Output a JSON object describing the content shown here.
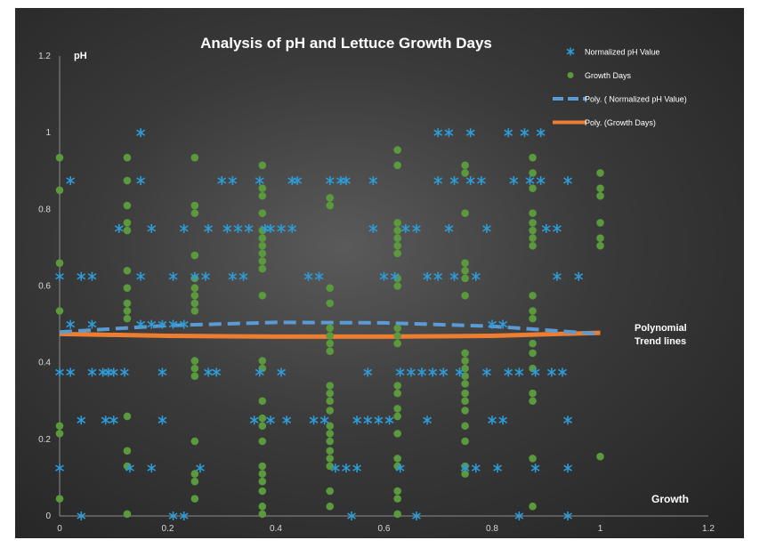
{
  "chart_data": {
    "type": "scatter",
    "title": "Analysis of pH and Lettuce Growth Days",
    "ylabel": "pH",
    "xlabel": "Growth",
    "annotation": "Polynomial Trend lines",
    "xlim": [
      0,
      1.2
    ],
    "ylim": [
      0,
      1.2
    ],
    "x_ticks": [
      "0",
      "0.2",
      "0.4",
      "0.6",
      "0.8",
      "1",
      "1.2"
    ],
    "y_ticks": [
      "0",
      "0.2",
      "0.4",
      "0.6",
      "0.8",
      "1",
      "1.2"
    ],
    "grid": false,
    "legend_position": "top-right",
    "legend": [
      {
        "label": "Normalized pH Value",
        "marker": "star",
        "color": "#2e9bd6"
      },
      {
        "label": "Growth Days",
        "marker": "circle",
        "color": "#5b9a3c"
      },
      {
        "label": "Poly. ( Normalized pH Value)",
        "marker": "dash",
        "color": "#5b9bd5"
      },
      {
        "label": "Poly. (Growth Days)",
        "marker": "line",
        "color": "#ed7d31"
      }
    ],
    "series": [
      {
        "name": "Normalized pH Value",
        "color": "#2e9bd6",
        "points": [
          [
            0.0,
            0.625
          ],
          [
            0.0,
            0.375
          ],
          [
            0.0,
            0.125
          ],
          [
            0.02,
            0.875
          ],
          [
            0.02,
            0.5
          ],
          [
            0.02,
            0.375
          ],
          [
            0.04,
            0.625
          ],
          [
            0.04,
            0.25
          ],
          [
            0.04,
            0.0
          ],
          [
            0.06,
            0.625
          ],
          [
            0.06,
            0.5
          ],
          [
            0.06,
            0.375
          ],
          [
            0.08,
            0.375
          ],
          [
            0.085,
            0.25
          ],
          [
            0.09,
            0.375
          ],
          [
            0.1,
            0.25
          ],
          [
            0.1,
            0.375
          ],
          [
            0.11,
            0.75
          ],
          [
            0.12,
            0.375
          ],
          [
            0.13,
            0.125
          ],
          [
            0.15,
            1.0
          ],
          [
            0.15,
            0.875
          ],
          [
            0.15,
            0.625
          ],
          [
            0.15,
            0.5
          ],
          [
            0.17,
            0.75
          ],
          [
            0.17,
            0.125
          ],
          [
            0.17,
            0.5
          ],
          [
            0.19,
            0.5
          ],
          [
            0.19,
            0.375
          ],
          [
            0.19,
            0.25
          ],
          [
            0.21,
            0.625
          ],
          [
            0.21,
            0.5
          ],
          [
            0.21,
            0.0
          ],
          [
            0.23,
            0.75
          ],
          [
            0.23,
            0.5
          ],
          [
            0.23,
            0.0
          ],
          [
            0.25,
            0.625
          ],
          [
            0.26,
            0.125
          ],
          [
            0.27,
            0.625
          ],
          [
            0.275,
            0.75
          ],
          [
            0.275,
            0.375
          ],
          [
            0.29,
            0.375
          ],
          [
            0.3,
            0.875
          ],
          [
            0.31,
            0.75
          ],
          [
            0.32,
            0.875
          ],
          [
            0.32,
            0.625
          ],
          [
            0.33,
            0.75
          ],
          [
            0.34,
            0.625
          ],
          [
            0.35,
            0.75
          ],
          [
            0.36,
            0.25
          ],
          [
            0.37,
            0.375
          ],
          [
            0.37,
            0.875
          ],
          [
            0.38,
            0.75
          ],
          [
            0.39,
            0.75
          ],
          [
            0.39,
            0.25
          ],
          [
            0.41,
            0.75
          ],
          [
            0.41,
            0.375
          ],
          [
            0.42,
            0.25
          ],
          [
            0.43,
            0.875
          ],
          [
            0.43,
            0.75
          ],
          [
            0.44,
            0.875
          ],
          [
            0.46,
            0.625
          ],
          [
            0.47,
            0.25
          ],
          [
            0.48,
            0.625
          ],
          [
            0.49,
            0.25
          ],
          [
            0.5,
            0.875
          ],
          [
            0.51,
            0.125
          ],
          [
            0.52,
            0.875
          ],
          [
            0.53,
            0.875
          ],
          [
            0.53,
            0.125
          ],
          [
            0.54,
            0.0
          ],
          [
            0.55,
            0.125
          ],
          [
            0.55,
            0.25
          ],
          [
            0.57,
            0.25
          ],
          [
            0.57,
            0.375
          ],
          [
            0.58,
            0.875
          ],
          [
            0.58,
            0.75
          ],
          [
            0.59,
            0.25
          ],
          [
            0.6,
            0.625
          ],
          [
            0.61,
            0.25
          ],
          [
            0.62,
            0.625
          ],
          [
            0.63,
            0.125
          ],
          [
            0.63,
            0.375
          ],
          [
            0.64,
            0.75
          ],
          [
            0.65,
            0.375
          ],
          [
            0.66,
            0.75
          ],
          [
            0.66,
            0.0
          ],
          [
            0.67,
            0.375
          ],
          [
            0.68,
            0.625
          ],
          [
            0.68,
            0.25
          ],
          [
            0.69,
            0.375
          ],
          [
            0.7,
            0.625
          ],
          [
            0.7,
            1.0
          ],
          [
            0.7,
            0.875
          ],
          [
            0.71,
            0.375
          ],
          [
            0.72,
            1.0
          ],
          [
            0.72,
            0.75
          ],
          [
            0.73,
            0.875
          ],
          [
            0.73,
            0.625
          ],
          [
            0.74,
            0.375
          ],
          [
            0.75,
            0.125
          ],
          [
            0.76,
            0.875
          ],
          [
            0.76,
            1.0
          ],
          [
            0.77,
            0.625
          ],
          [
            0.77,
            0.125
          ],
          [
            0.78,
            0.875
          ],
          [
            0.79,
            0.75
          ],
          [
            0.79,
            0.375
          ],
          [
            0.8,
            0.25
          ],
          [
            0.8,
            0.5
          ],
          [
            0.81,
            0.125
          ],
          [
            0.82,
            0.5
          ],
          [
            0.82,
            0.25
          ],
          [
            0.83,
            0.375
          ],
          [
            0.83,
            1.0
          ],
          [
            0.84,
            0.875
          ],
          [
            0.85,
            0.0
          ],
          [
            0.85,
            0.375
          ],
          [
            0.86,
            1.0
          ],
          [
            0.87,
            0.875
          ],
          [
            0.88,
            0.375
          ],
          [
            0.88,
            0.125
          ],
          [
            0.89,
            0.875
          ],
          [
            0.89,
            1.0
          ],
          [
            0.9,
            0.75
          ],
          [
            0.91,
            0.375
          ],
          [
            0.92,
            0.75
          ],
          [
            0.92,
            0.625
          ],
          [
            0.93,
            0.375
          ],
          [
            0.94,
            0.875
          ],
          [
            0.94,
            0.25
          ],
          [
            0.94,
            0.125
          ],
          [
            0.94,
            0.0
          ],
          [
            0.96,
            0.625
          ]
        ]
      },
      {
        "name": "Growth Days",
        "color": "#5b9a3c",
        "points": [
          [
            0.0,
            0.935
          ],
          [
            0.0,
            0.85
          ],
          [
            0.0,
            0.66
          ],
          [
            0.0,
            0.535
          ],
          [
            0.0,
            0.235
          ],
          [
            0.0,
            0.215
          ],
          [
            0.0,
            0.045
          ],
          [
            0.125,
            0.935
          ],
          [
            0.125,
            0.875
          ],
          [
            0.125,
            0.81
          ],
          [
            0.125,
            0.765
          ],
          [
            0.125,
            0.745
          ],
          [
            0.125,
            0.64
          ],
          [
            0.125,
            0.595
          ],
          [
            0.125,
            0.555
          ],
          [
            0.125,
            0.535
          ],
          [
            0.125,
            0.515
          ],
          [
            0.125,
            0.26
          ],
          [
            0.125,
            0.17
          ],
          [
            0.125,
            0.13
          ],
          [
            0.125,
            0.005
          ],
          [
            0.25,
            0.935
          ],
          [
            0.25,
            0.81
          ],
          [
            0.25,
            0.79
          ],
          [
            0.25,
            0.68
          ],
          [
            0.25,
            0.62
          ],
          [
            0.25,
            0.595
          ],
          [
            0.25,
            0.575
          ],
          [
            0.25,
            0.555
          ],
          [
            0.25,
            0.535
          ],
          [
            0.25,
            0.405
          ],
          [
            0.25,
            0.385
          ],
          [
            0.25,
            0.365
          ],
          [
            0.25,
            0.195
          ],
          [
            0.25,
            0.11
          ],
          [
            0.25,
            0.09
          ],
          [
            0.25,
            0.045
          ],
          [
            0.375,
            0.915
          ],
          [
            0.375,
            0.855
          ],
          [
            0.375,
            0.835
          ],
          [
            0.375,
            0.79
          ],
          [
            0.375,
            0.745
          ],
          [
            0.375,
            0.725
          ],
          [
            0.375,
            0.705
          ],
          [
            0.375,
            0.685
          ],
          [
            0.375,
            0.665
          ],
          [
            0.375,
            0.645
          ],
          [
            0.375,
            0.575
          ],
          [
            0.375,
            0.405
          ],
          [
            0.375,
            0.385
          ],
          [
            0.375,
            0.3
          ],
          [
            0.375,
            0.255
          ],
          [
            0.375,
            0.235
          ],
          [
            0.375,
            0.195
          ],
          [
            0.375,
            0.13
          ],
          [
            0.375,
            0.11
          ],
          [
            0.375,
            0.09
          ],
          [
            0.375,
            0.065
          ],
          [
            0.375,
            0.025
          ],
          [
            0.375,
            0.005
          ],
          [
            0.5,
            0.83
          ],
          [
            0.5,
            0.81
          ],
          [
            0.5,
            0.595
          ],
          [
            0.5,
            0.555
          ],
          [
            0.5,
            0.49
          ],
          [
            0.5,
            0.47
          ],
          [
            0.5,
            0.45
          ],
          [
            0.5,
            0.43
          ],
          [
            0.5,
            0.34
          ],
          [
            0.5,
            0.32
          ],
          [
            0.5,
            0.3
          ],
          [
            0.5,
            0.275
          ],
          [
            0.5,
            0.235
          ],
          [
            0.5,
            0.215
          ],
          [
            0.5,
            0.195
          ],
          [
            0.5,
            0.17
          ],
          [
            0.5,
            0.15
          ],
          [
            0.5,
            0.13
          ],
          [
            0.5,
            0.065
          ],
          [
            0.5,
            0.025
          ],
          [
            0.625,
            0.955
          ],
          [
            0.625,
            0.915
          ],
          [
            0.625,
            0.765
          ],
          [
            0.625,
            0.745
          ],
          [
            0.625,
            0.725
          ],
          [
            0.625,
            0.705
          ],
          [
            0.625,
            0.685
          ],
          [
            0.625,
            0.62
          ],
          [
            0.625,
            0.6
          ],
          [
            0.625,
            0.49
          ],
          [
            0.625,
            0.47
          ],
          [
            0.625,
            0.45
          ],
          [
            0.625,
            0.34
          ],
          [
            0.625,
            0.32
          ],
          [
            0.625,
            0.28
          ],
          [
            0.625,
            0.26
          ],
          [
            0.625,
            0.215
          ],
          [
            0.625,
            0.15
          ],
          [
            0.625,
            0.13
          ],
          [
            0.625,
            0.065
          ],
          [
            0.625,
            0.045
          ],
          [
            0.625,
            0.005
          ],
          [
            0.75,
            0.915
          ],
          [
            0.75,
            0.895
          ],
          [
            0.75,
            0.79
          ],
          [
            0.75,
            0.66
          ],
          [
            0.75,
            0.64
          ],
          [
            0.75,
            0.62
          ],
          [
            0.75,
            0.575
          ],
          [
            0.75,
            0.425
          ],
          [
            0.75,
            0.405
          ],
          [
            0.75,
            0.385
          ],
          [
            0.75,
            0.365
          ],
          [
            0.75,
            0.345
          ],
          [
            0.75,
            0.32
          ],
          [
            0.75,
            0.3
          ],
          [
            0.75,
            0.275
          ],
          [
            0.75,
            0.235
          ],
          [
            0.75,
            0.195
          ],
          [
            0.75,
            0.13
          ],
          [
            0.75,
            0.11
          ],
          [
            0.875,
            0.935
          ],
          [
            0.875,
            0.895
          ],
          [
            0.875,
            0.855
          ],
          [
            0.875,
            0.79
          ],
          [
            0.875,
            0.765
          ],
          [
            0.875,
            0.745
          ],
          [
            0.875,
            0.725
          ],
          [
            0.875,
            0.705
          ],
          [
            0.875,
            0.575
          ],
          [
            0.875,
            0.535
          ],
          [
            0.875,
            0.515
          ],
          [
            0.875,
            0.45
          ],
          [
            0.875,
            0.425
          ],
          [
            0.875,
            0.385
          ],
          [
            0.875,
            0.32
          ],
          [
            0.875,
            0.3
          ],
          [
            0.875,
            0.15
          ],
          [
            0.875,
            0.025
          ],
          [
            1.0,
            0.895
          ],
          [
            1.0,
            0.855
          ],
          [
            1.0,
            0.835
          ],
          [
            1.0,
            0.765
          ],
          [
            1.0,
            0.725
          ],
          [
            1.0,
            0.705
          ],
          [
            1.0,
            0.155
          ]
        ]
      },
      {
        "name": "Poly. ( Normalized pH Value)",
        "color": "#5b9bd5",
        "points": [
          [
            0.0,
            0.48
          ],
          [
            0.2,
            0.497
          ],
          [
            0.4,
            0.505
          ],
          [
            0.6,
            0.504
          ],
          [
            0.8,
            0.495
          ],
          [
            1.0,
            0.475
          ]
        ]
      },
      {
        "name": "Poly. (Growth Days)",
        "color": "#ed7d31",
        "points": [
          [
            0.0,
            0.475
          ],
          [
            0.2,
            0.47
          ],
          [
            0.4,
            0.468
          ],
          [
            0.6,
            0.468
          ],
          [
            0.8,
            0.47
          ],
          [
            1.0,
            0.478
          ]
        ]
      }
    ]
  }
}
